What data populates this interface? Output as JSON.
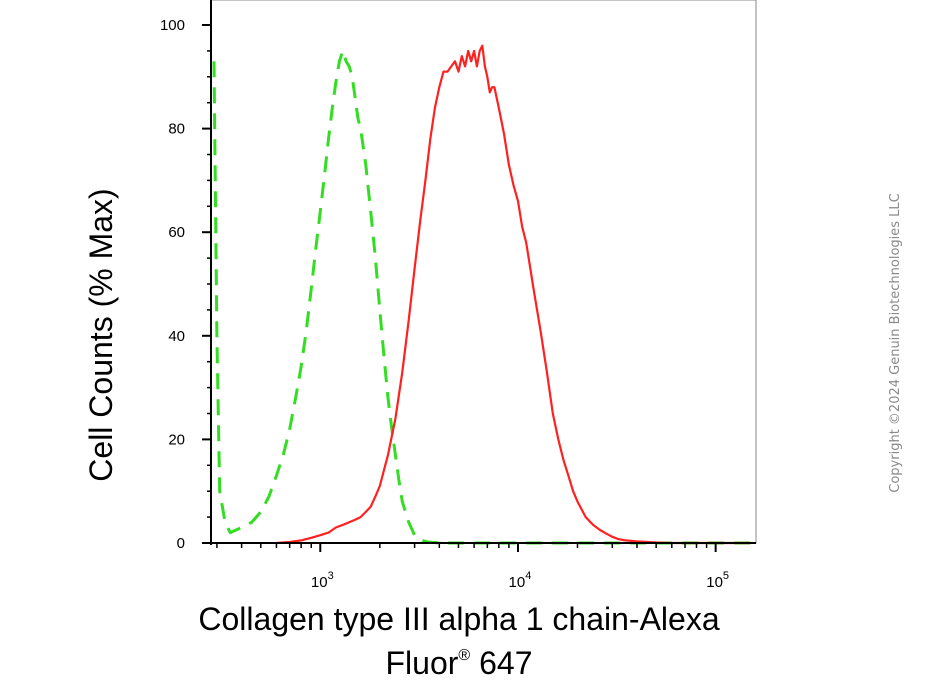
{
  "chart_data": {
    "type": "line",
    "xlabel_line1": "Collagen type III alpha 1 chain-Alexa",
    "xlabel_line2_main": "Fluor",
    "xlabel_line2_reg": "®",
    "xlabel_line2_tail": " 647",
    "ylabel": "Cell Counts (% Max)",
    "x_scale": "log",
    "xlim": [
      280,
      160000
    ],
    "ylim": [
      0,
      105
    ],
    "y_ticks": [
      0,
      20,
      40,
      60,
      80,
      100
    ],
    "x_ticks": [
      {
        "value": 1000,
        "base": "10",
        "exp": "3"
      },
      {
        "value": 10000,
        "base": "10",
        "exp": "4"
      },
      {
        "value": 100000,
        "base": "10",
        "exp": "5"
      }
    ],
    "grid": false,
    "series": [
      {
        "color": "#33dd22",
        "style": "dashed",
        "x": [
          290,
          300,
          310,
          330,
          350,
          400,
          450,
          500,
          550,
          600,
          650,
          700,
          750,
          800,
          850,
          900,
          950,
          1000,
          1050,
          1100,
          1150,
          1200,
          1250,
          1300,
          1350,
          1400,
          1450,
          1500,
          1550,
          1600,
          1700,
          1800,
          1900,
          2000,
          2100,
          2200,
          2300,
          2400,
          2500,
          2600,
          2800,
          3000,
          3200,
          3500,
          4000,
          5000,
          8000,
          15000,
          30000,
          60000,
          150000
        ],
        "y": [
          93,
          40,
          10,
          4,
          2,
          3,
          4,
          6,
          9,
          13,
          17,
          22,
          28,
          34,
          41,
          49,
          57,
          64,
          71,
          78,
          84,
          89,
          93,
          95,
          93,
          92,
          90,
          86,
          82,
          80,
          73,
          64,
          55,
          45,
          36,
          28,
          22,
          17,
          12,
          8,
          4,
          1.5,
          0.6,
          0.2,
          0,
          0,
          0,
          0,
          0,
          0,
          0
        ]
      },
      {
        "color": "#ff2020",
        "style": "solid",
        "x": [
          600,
          700,
          800,
          900,
          1000,
          1100,
          1200,
          1300,
          1400,
          1500,
          1600,
          1700,
          1800,
          1900,
          2000,
          2200,
          2400,
          2600,
          2800,
          3000,
          3200,
          3400,
          3600,
          3800,
          4000,
          4200,
          4400,
          4600,
          4800,
          5000,
          5200,
          5400,
          5600,
          5800,
          6000,
          6200,
          6400,
          6600,
          6800,
          7000,
          7200,
          7400,
          7600,
          8000,
          8500,
          9000,
          9500,
          10000,
          10500,
          11000,
          12000,
          13000,
          14000,
          15000,
          16000,
          17000,
          18000,
          19000,
          20000,
          22000,
          24000,
          26000,
          28000,
          30000,
          32000,
          35000,
          40000,
          50000,
          60000,
          80000,
          100000,
          130000,
          150000
        ],
        "y": [
          0,
          0.2,
          0.5,
          1,
          1.5,
          2,
          3,
          3.5,
          4,
          4.5,
          5,
          6,
          7,
          9,
          11,
          17,
          24,
          33,
          43,
          53,
          62,
          70,
          78,
          84,
          88,
          91,
          91,
          92,
          93,
          91,
          94,
          92,
          95,
          93,
          95,
          92,
          95,
          96,
          92,
          90,
          87,
          88,
          88,
          84,
          79,
          73,
          69,
          66,
          61,
          58,
          49,
          41,
          33,
          25,
          20,
          16,
          13,
          10,
          8,
          5,
          3.5,
          2.5,
          1.8,
          1.2,
          0.8,
          0.5,
          0.3,
          0.1,
          0,
          0,
          0,
          0,
          0
        ]
      }
    ]
  },
  "copyright": "Copyright ©2024 Genuin Biotechnologies LLC"
}
